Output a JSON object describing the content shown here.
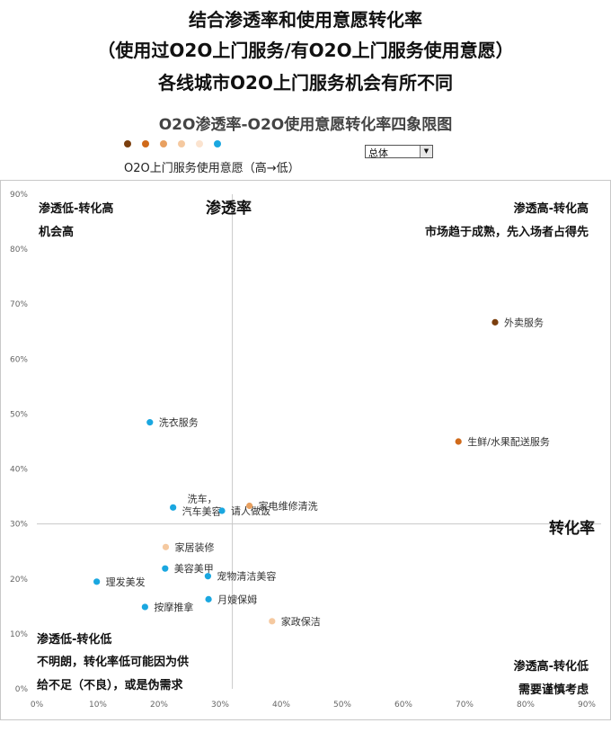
{
  "header": {
    "line1": "结合渗透率和使用意愿转化率",
    "line2": "（使用过O2O上门服务/有O2O上门服务使用意愿）",
    "line3": "各线城市O2O上门服务机会有所不同"
  },
  "legend": {
    "colors": [
      "#7b3f0e",
      "#d06a1a",
      "#e8a060",
      "#f5c9a0",
      "#fbe3cf",
      "#1aa7e0"
    ],
    "label": "O2O上门服务使用意愿（高→低）"
  },
  "dropdown": {
    "value": "总体"
  },
  "quadrants": {
    "top_left_title": "渗透低-转化高",
    "top_left_desc": "机会高",
    "top_right_title": "渗透高-转化高",
    "top_right_desc": "市场趋于成熟，先入场者占得先",
    "bottom_left_title": "渗透低-转化低",
    "bottom_left_desc1": "不明朗，转化率低可能因为供",
    "bottom_left_desc2": "给不足（不良），或是伪需求",
    "bottom_right_title": "渗透高-转化低",
    "bottom_right_desc": "需要谨慎考虑"
  },
  "chart_data": {
    "type": "scatter",
    "title": "O2O渗透率-O2O使用意愿转化率四象限图",
    "xlabel": "转化率",
    "ylabel": "渗透率",
    "xlim": [
      0,
      90
    ],
    "ylim": [
      0,
      90
    ],
    "x_ticks": [
      "0%",
      "10%",
      "20%",
      "30%",
      "40%",
      "50%",
      "60%",
      "70%",
      "80%",
      "90%"
    ],
    "y_ticks": [
      "0%",
      "10%",
      "20%",
      "30%",
      "40%",
      "50%",
      "60%",
      "70%",
      "80%",
      "90%"
    ],
    "x_divider": 32,
    "y_divider": 30,
    "points": [
      {
        "label": "外卖服务",
        "x": 75,
        "y": 66.7,
        "color": "#7b3f0e"
      },
      {
        "label": "生鲜/水果配送服务",
        "x": 69,
        "y": 45,
        "color": "#d06a1a"
      },
      {
        "label": "洗衣服务",
        "x": 18.5,
        "y": 48.5,
        "color": "#1aa7e0"
      },
      {
        "label": "洗车，汽车美容",
        "x": 22.3,
        "y": 33,
        "color": "#1aa7e0"
      },
      {
        "label": "请人做饭",
        "x": 30.3,
        "y": 32.4,
        "color": "#1aa7e0"
      },
      {
        "label": "家电维修清洗",
        "x": 34.8,
        "y": 33.3,
        "color": "#e8a060"
      },
      {
        "label": "家居装修",
        "x": 21.1,
        "y": 25.8,
        "color": "#f5c9a0"
      },
      {
        "label": "美容美甲",
        "x": 21,
        "y": 21.9,
        "color": "#1aa7e0"
      },
      {
        "label": "宠物清洁美容",
        "x": 28,
        "y": 20.5,
        "color": "#1aa7e0"
      },
      {
        "label": "理发美发",
        "x": 9.8,
        "y": 19.5,
        "color": "#1aa7e0"
      },
      {
        "label": "月嫂保姆",
        "x": 28.1,
        "y": 16.3,
        "color": "#1aa7e0"
      },
      {
        "label": "按摩推拿",
        "x": 17.7,
        "y": 14.9,
        "color": "#1aa7e0"
      },
      {
        "label": "家政保洁",
        "x": 38.5,
        "y": 12.3,
        "color": "#f5c9a0"
      }
    ]
  }
}
